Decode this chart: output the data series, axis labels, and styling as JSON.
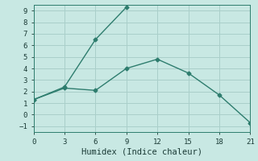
{
  "line1_x": [
    0,
    3,
    6,
    9
  ],
  "line1_y": [
    1.3,
    2.4,
    6.5,
    9.3
  ],
  "line2_x": [
    0,
    3,
    6,
    9,
    12,
    15,
    18,
    21
  ],
  "line2_y": [
    1.3,
    2.3,
    2.1,
    4.0,
    4.8,
    3.6,
    1.7,
    -0.7
  ],
  "line_color": "#2e7d6e",
  "background_color": "#c8e8e3",
  "grid_color": "#aacfca",
  "xlabel": "Humidex (Indice chaleur)",
  "xlim": [
    0,
    21
  ],
  "ylim": [
    -1.5,
    9.5
  ],
  "xticks": [
    0,
    3,
    6,
    9,
    12,
    15,
    18,
    21
  ],
  "yticks": [
    -1,
    0,
    1,
    2,
    3,
    4,
    5,
    6,
    7,
    8,
    9
  ],
  "xlabel_fontsize": 7.5,
  "tick_fontsize": 6.5,
  "marker": "D",
  "marker_size": 2.5,
  "line_width": 1.0
}
